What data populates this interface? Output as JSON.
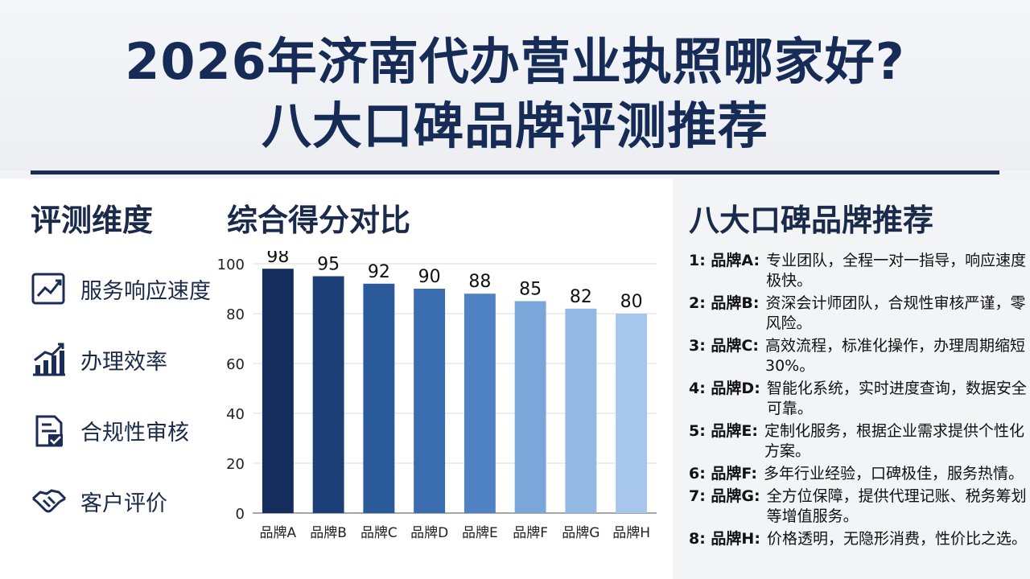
{
  "title": {
    "line1": "2026年济南代办营业执照哪家好?",
    "line2": "八大口碑品牌评测推荐"
  },
  "dimensions": {
    "heading": "评测维度",
    "items": [
      {
        "label": "服务响应速度",
        "icon": "trend-line-chart-icon"
      },
      {
        "label": "办理效率",
        "icon": "bar-growth-chart-icon"
      },
      {
        "label": "合规性审核",
        "icon": "document-check-icon"
      },
      {
        "label": "客户评价",
        "icon": "handshake-icon"
      }
    ]
  },
  "chart_section": {
    "heading": "综合得分对比"
  },
  "chart_data": {
    "type": "bar",
    "title": "综合得分对比",
    "categories": [
      "品牌A",
      "品牌B",
      "品牌C",
      "品牌D",
      "品牌E",
      "品牌F",
      "品牌G",
      "品牌H"
    ],
    "values": [
      98,
      95,
      92,
      90,
      88,
      85,
      82,
      80
    ],
    "data_labels": [
      "98",
      "95",
      "92",
      "90",
      "88",
      "85",
      "82",
      "80"
    ],
    "ylim": [
      0,
      100
    ],
    "yticks": [
      0,
      20,
      40,
      60,
      80,
      100
    ],
    "ytick_labels": [
      "0",
      "20",
      "40",
      "60",
      "80",
      "100"
    ],
    "grid": true,
    "colors": [
      "#142d5c",
      "#1d3f78",
      "#2b5a9b",
      "#3a6db0",
      "#4e82c2",
      "#7aa6d9",
      "#93b8e3",
      "#a6c6ec"
    ]
  },
  "brands": {
    "heading": "八大口碑品牌推荐",
    "items": [
      {
        "prefix": "1: 品牌A:",
        "desc": "专业团队，全程一对一指导，响应速度极快。"
      },
      {
        "prefix": "2: 品牌B:",
        "desc": "资深会计师团队，合规性审核严谨，零风险。"
      },
      {
        "prefix": "3: 品牌C:",
        "desc": "高效流程，标准化操作，办理周期缩短30%。"
      },
      {
        "prefix": "4: 品牌D:",
        "desc": "智能化系统，实时进度查询，数据安全可靠。"
      },
      {
        "prefix": "5: 品牌E:",
        "desc": "定制化服务，根据企业需求提供个性化方案。"
      },
      {
        "prefix": "6: 品牌F:",
        "desc": "多年行业经验，口碑极佳，服务热情。"
      },
      {
        "prefix": "7: 品牌G:",
        "desc": "全方位保障，提供代理记账、税务筹划等增值服务。"
      },
      {
        "prefix": "8: 品牌H:",
        "desc": "价格透明，无隐形消费，性价比之选。"
      }
    ]
  }
}
